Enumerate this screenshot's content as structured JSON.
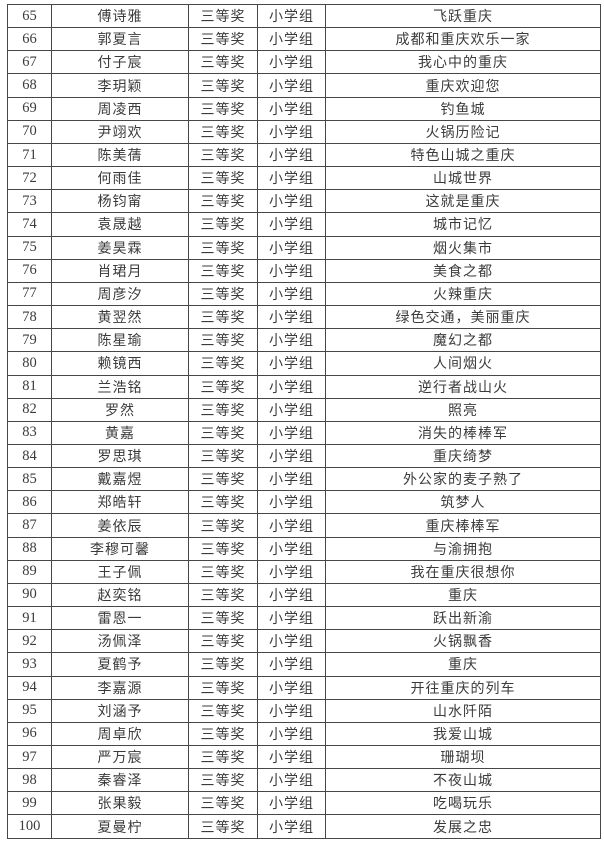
{
  "table": {
    "rows": [
      {
        "no": "65",
        "name": "傅诗雅",
        "award": "三等奖",
        "group": "小学组",
        "title": "飞跃重庆"
      },
      {
        "no": "66",
        "name": "郭夏言",
        "award": "三等奖",
        "group": "小学组",
        "title": "成都和重庆欢乐一家"
      },
      {
        "no": "67",
        "name": "付子宸",
        "award": "三等奖",
        "group": "小学组",
        "title": "我心中的重庆"
      },
      {
        "no": "68",
        "name": "李玥颖",
        "award": "三等奖",
        "group": "小学组",
        "title": "重庆欢迎您"
      },
      {
        "no": "69",
        "name": "周凌西",
        "award": "三等奖",
        "group": "小学组",
        "title": "钓鱼城"
      },
      {
        "no": "70",
        "name": "尹翊欢",
        "award": "三等奖",
        "group": "小学组",
        "title": "火锅历险记"
      },
      {
        "no": "71",
        "name": "陈美蒨",
        "award": "三等奖",
        "group": "小学组",
        "title": "特色山城之重庆"
      },
      {
        "no": "72",
        "name": "何雨佳",
        "award": "三等奖",
        "group": "小学组",
        "title": "山城世界"
      },
      {
        "no": "73",
        "name": "杨钧甯",
        "award": "三等奖",
        "group": "小学组",
        "title": "这就是重庆"
      },
      {
        "no": "74",
        "name": "袁晟越",
        "award": "三等奖",
        "group": "小学组",
        "title": "城市记忆"
      },
      {
        "no": "75",
        "name": "姜昊霖",
        "award": "三等奖",
        "group": "小学组",
        "title": "烟火集市"
      },
      {
        "no": "76",
        "name": "肖珺月",
        "award": "三等奖",
        "group": "小学组",
        "title": "美食之都"
      },
      {
        "no": "77",
        "name": "周彦汐",
        "award": "三等奖",
        "group": "小学组",
        "title": "火辣重庆"
      },
      {
        "no": "78",
        "name": "黄翌然",
        "award": "三等奖",
        "group": "小学组",
        "title": "绿色交通，美丽重庆"
      },
      {
        "no": "79",
        "name": "陈星瑜",
        "award": "三等奖",
        "group": "小学组",
        "title": "魔幻之都"
      },
      {
        "no": "80",
        "name": "赖镜西",
        "award": "三等奖",
        "group": "小学组",
        "title": "人间烟火"
      },
      {
        "no": "81",
        "name": "兰浩铭",
        "award": "三等奖",
        "group": "小学组",
        "title": "逆行者战山火"
      },
      {
        "no": "82",
        "name": "罗然",
        "award": "三等奖",
        "group": "小学组",
        "title": "照亮"
      },
      {
        "no": "83",
        "name": "黄嘉",
        "award": "三等奖",
        "group": "小学组",
        "title": "消失的棒棒军"
      },
      {
        "no": "84",
        "name": "罗思琪",
        "award": "三等奖",
        "group": "小学组",
        "title": "重庆绮梦"
      },
      {
        "no": "85",
        "name": "戴嘉煜",
        "award": "三等奖",
        "group": "小学组",
        "title": "外公家的麦子熟了"
      },
      {
        "no": "86",
        "name": "郑皓轩",
        "award": "三等奖",
        "group": "小学组",
        "title": "筑梦人"
      },
      {
        "no": "87",
        "name": "姜依辰",
        "award": "三等奖",
        "group": "小学组",
        "title": "重庆棒棒军"
      },
      {
        "no": "88",
        "name": "李穆可馨",
        "award": "三等奖",
        "group": "小学组",
        "title": "与渝拥抱"
      },
      {
        "no": "89",
        "name": "王子佩",
        "award": "三等奖",
        "group": "小学组",
        "title": "我在重庆很想你"
      },
      {
        "no": "90",
        "name": "赵奕铭",
        "award": "三等奖",
        "group": "小学组",
        "title": "重庆"
      },
      {
        "no": "91",
        "name": "雷恩一",
        "award": "三等奖",
        "group": "小学组",
        "title": "跃出新渝"
      },
      {
        "no": "92",
        "name": "汤佩泽",
        "award": "三等奖",
        "group": "小学组",
        "title": "火锅飘香"
      },
      {
        "no": "93",
        "name": "夏鹤予",
        "award": "三等奖",
        "group": "小学组",
        "title": "重庆"
      },
      {
        "no": "94",
        "name": "李嘉源",
        "award": "三等奖",
        "group": "小学组",
        "title": "开往重庆的列车"
      },
      {
        "no": "95",
        "name": "刘涵予",
        "award": "三等奖",
        "group": "小学组",
        "title": "山水阡陌"
      },
      {
        "no": "96",
        "name": "周卓欣",
        "award": "三等奖",
        "group": "小学组",
        "title": "我爱山城"
      },
      {
        "no": "97",
        "name": "严万宸",
        "award": "三等奖",
        "group": "小学组",
        "title": "珊瑚坝"
      },
      {
        "no": "98",
        "name": "秦睿泽",
        "award": "三等奖",
        "group": "小学组",
        "title": "不夜山城"
      },
      {
        "no": "99",
        "name": "张果毅",
        "award": "三等奖",
        "group": "小学组",
        "title": "吃喝玩乐"
      },
      {
        "no": "100",
        "name": "夏曼柠",
        "award": "三等奖",
        "group": "小学组",
        "title": "发展之忠"
      }
    ]
  }
}
